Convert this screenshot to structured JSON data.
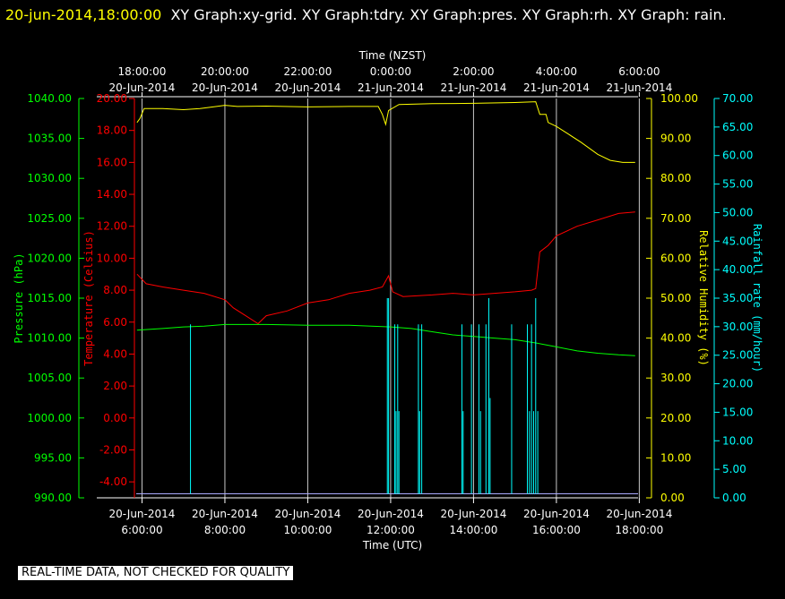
{
  "header": {
    "stamp": "20-jun-2014,18:00:00",
    "graphs": "XY Graph:xy-grid.  XY Graph:tdry.  XY Graph:pres.  XY Graph:rh.  XY Graph: rain."
  },
  "footer": {
    "notice": "REAL-TIME DATA, NOT CHECKED FOR QUALITY"
  },
  "colors": {
    "background": "#000000",
    "grid": "#c8c8c8",
    "pressure": "#00ff00",
    "temperature": "#ff0000",
    "humidity": "#ffff00",
    "rain": "#00ffff",
    "baseline": "#aaaaff"
  },
  "chart_data": {
    "type": "line",
    "x_top": {
      "label": "Time (NZST)",
      "ticks": [
        {
          "x": 6,
          "line1": "18:00:00",
          "line2": "20-Jun-2014"
        },
        {
          "x": 8,
          "line1": "20:00:00",
          "line2": "20-Jun-2014"
        },
        {
          "x": 10,
          "line1": "22:00:00",
          "line2": "20-Jun-2014"
        },
        {
          "x": 12,
          "line1": "0:00:00",
          "line2": "21-Jun-2014"
        },
        {
          "x": 14,
          "line1": "2:00:00",
          "line2": "21-Jun-2014"
        },
        {
          "x": 16,
          "line1": "4:00:00",
          "line2": "21-Jun-2014"
        },
        {
          "x": 18,
          "line1": "6:00:00",
          "line2": "21-Jun-2014"
        }
      ]
    },
    "x_bottom": {
      "label": "Time (UTC)",
      "ticks": [
        {
          "x": 6,
          "line1": "20-Jun-2014",
          "line2": "6:00:00"
        },
        {
          "x": 8,
          "line1": "20-Jun-2014",
          "line2": "8:00:00"
        },
        {
          "x": 10,
          "line1": "20-Jun-2014",
          "line2": "10:00:00"
        },
        {
          "x": 12,
          "line1": "20-Jun-2014",
          "line2": "12:00:00"
        },
        {
          "x": 14,
          "line1": "20-Jun-2014",
          "line2": "14:00:00"
        },
        {
          "x": 16,
          "line1": "20-Jun-2014",
          "line2": "16:00:00"
        },
        {
          "x": 18,
          "line1": "20-Jun-2014",
          "line2": "18:00:00"
        }
      ]
    },
    "xlim": [
      5.86,
      17.97
    ],
    "axes": [
      {
        "key": "pressure",
        "label": "Pressure (hPa)",
        "ylim": [
          990,
          1040
        ],
        "ticks": [
          "990.00",
          "995.00",
          "1000.00",
          "1005.00",
          "1010.00",
          "1015.00",
          "1020.00",
          "1025.00",
          "1030.00",
          "1035.00",
          "1040.00"
        ]
      },
      {
        "key": "temperature",
        "label": "Temperature (Celsius)",
        "ylim": [
          -5,
          20
        ],
        "ticks": [
          "-4.00",
          "-2.00",
          "0.00",
          "2.00",
          "4.00",
          "6.00",
          "8.00",
          "10.00",
          "12.00",
          "14.00",
          "16.00",
          "18.00",
          "20.00"
        ]
      },
      {
        "key": "humidity",
        "label": "Relative Humidity (%)",
        "ylim": [
          0,
          100
        ],
        "ticks": [
          "0.00",
          "10.00",
          "20.00",
          "30.00",
          "40.00",
          "50.00",
          "60.00",
          "70.00",
          "80.00",
          "90.00",
          "100.00"
        ]
      },
      {
        "key": "rain",
        "label": "Rainfall rate (mm/hour)",
        "ylim": [
          0,
          70
        ],
        "ticks": [
          "0.00",
          "5.00",
          "10.00",
          "15.00",
          "20.00",
          "25.00",
          "30.00",
          "35.00",
          "40.00",
          "45.00",
          "50.00",
          "55.00",
          "60.00",
          "65.00",
          "70.00"
        ]
      }
    ],
    "series": [
      {
        "key": "humidity",
        "name": "rh",
        "points": [
          [
            5.88,
            94
          ],
          [
            5.95,
            95
          ],
          [
            6.05,
            97.5
          ],
          [
            6.5,
            97.5
          ],
          [
            7,
            97.2
          ],
          [
            7.4,
            97.5
          ],
          [
            7.8,
            98
          ],
          [
            8,
            98.3
          ],
          [
            8.3,
            98
          ],
          [
            9,
            98.1
          ],
          [
            10,
            97.9
          ],
          [
            11,
            98
          ],
          [
            11.7,
            98
          ],
          [
            11.8,
            96
          ],
          [
            11.88,
            93.5
          ],
          [
            11.95,
            97
          ],
          [
            12.2,
            98.5
          ],
          [
            13,
            98.7
          ],
          [
            14,
            98.8
          ],
          [
            15,
            99
          ],
          [
            15.5,
            99.2
          ],
          [
            15.6,
            96
          ],
          [
            15.75,
            96
          ],
          [
            15.8,
            94
          ],
          [
            16,
            93
          ],
          [
            16.3,
            91
          ],
          [
            16.6,
            89
          ],
          [
            17,
            86
          ],
          [
            17.3,
            84.5
          ],
          [
            17.6,
            84
          ],
          [
            17.9,
            84
          ]
        ]
      },
      {
        "key": "temperature",
        "name": "tdry",
        "points": [
          [
            5.88,
            9.0
          ],
          [
            6.1,
            8.4
          ],
          [
            6.5,
            8.2
          ],
          [
            7,
            8.0
          ],
          [
            7.5,
            7.8
          ],
          [
            8,
            7.4
          ],
          [
            8.2,
            6.9
          ],
          [
            8.5,
            6.4
          ],
          [
            8.8,
            5.9
          ],
          [
            9,
            6.4
          ],
          [
            9.5,
            6.7
          ],
          [
            10,
            7.2
          ],
          [
            10.5,
            7.4
          ],
          [
            11,
            7.8
          ],
          [
            11.5,
            8.0
          ],
          [
            11.8,
            8.2
          ],
          [
            11.95,
            8.9
          ],
          [
            12.05,
            7.9
          ],
          [
            12.3,
            7.6
          ],
          [
            13,
            7.7
          ],
          [
            13.5,
            7.8
          ],
          [
            14,
            7.7
          ],
          [
            14.5,
            7.8
          ],
          [
            15,
            7.9
          ],
          [
            15.4,
            8.0
          ],
          [
            15.5,
            8.1
          ],
          [
            15.6,
            10.4
          ],
          [
            15.8,
            10.8
          ],
          [
            16,
            11.4
          ],
          [
            16.5,
            12.0
          ],
          [
            17,
            12.4
          ],
          [
            17.5,
            12.8
          ],
          [
            17.9,
            12.9
          ]
        ]
      },
      {
        "key": "pressure",
        "name": "pres",
        "points": [
          [
            5.88,
            1011.0
          ],
          [
            6.5,
            1011.2
          ],
          [
            7,
            1011.4
          ],
          [
            7.5,
            1011.5
          ],
          [
            8,
            1011.7
          ],
          [
            8.5,
            1011.7
          ],
          [
            9,
            1011.7
          ],
          [
            10,
            1011.6
          ],
          [
            11,
            1011.6
          ],
          [
            12,
            1011.4
          ],
          [
            12.5,
            1011.2
          ],
          [
            13,
            1010.8
          ],
          [
            13.5,
            1010.4
          ],
          [
            14,
            1010.2
          ],
          [
            14.5,
            1010.0
          ],
          [
            15,
            1009.8
          ],
          [
            15.5,
            1009.4
          ],
          [
            16,
            1008.9
          ],
          [
            16.5,
            1008.4
          ],
          [
            17,
            1008.1
          ],
          [
            17.5,
            1007.9
          ],
          [
            17.9,
            1007.8
          ]
        ]
      },
      {
        "key": "rain",
        "name": "rain",
        "baseline": 0.7,
        "spikes": [
          [
            7.17,
            30.4
          ],
          [
            11.92,
            35
          ],
          [
            11.95,
            35
          ],
          [
            12.1,
            30.4
          ],
          [
            12.13,
            15.2
          ],
          [
            12.17,
            30.4
          ],
          [
            12.2,
            15.2
          ],
          [
            12.67,
            30.4
          ],
          [
            12.7,
            15.2
          ],
          [
            12.75,
            30.4
          ],
          [
            13.72,
            30.4
          ],
          [
            13.75,
            15.2
          ],
          [
            13.95,
            30.4
          ],
          [
            14.13,
            30.4
          ],
          [
            14.17,
            15.2
          ],
          [
            14.3,
            30.4
          ],
          [
            14.37,
            35
          ],
          [
            14.4,
            17.5
          ],
          [
            14.92,
            30.4
          ],
          [
            15.3,
            30.4
          ],
          [
            15.35,
            15.2
          ],
          [
            15.4,
            30.4
          ],
          [
            15.45,
            15.2
          ],
          [
            15.5,
            35
          ],
          [
            15.55,
            15.2
          ]
        ]
      }
    ]
  }
}
